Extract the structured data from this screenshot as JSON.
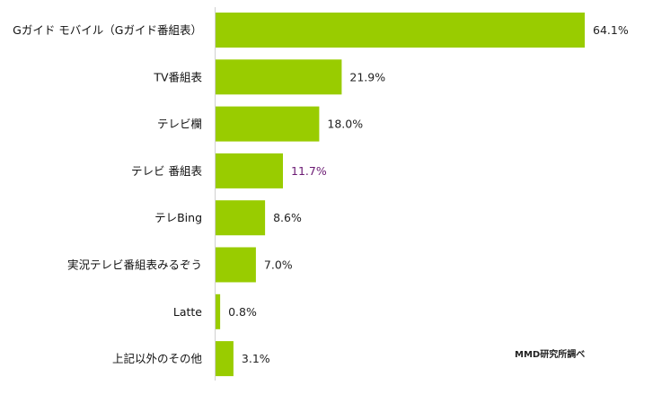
{
  "chart_data": {
    "type": "bar",
    "orientation": "horizontal",
    "categories": [
      "Gガイド モバイル（Gガイド番組表）",
      "TV番組表",
      "テレビ欄",
      "テレビ 番組表",
      "テレBing",
      "実況テレビ番組表みるぞう",
      "Latte",
      "上記以外のその他"
    ],
    "values": [
      64.1,
      21.9,
      18.0,
      11.7,
      8.6,
      7.0,
      0.8,
      3.1
    ],
    "value_labels": [
      "64.1%",
      "21.9%",
      "18.0%",
      "11.7%",
      "8.6%",
      "7.0%",
      "0.8%",
      "3.1%"
    ],
    "value_label_colors": [
      "#222222",
      "#222222",
      "#222222",
      "#6b1a73",
      "#222222",
      "#222222",
      "#222222",
      "#222222"
    ],
    "xlim": [
      0,
      64.1
    ],
    "grid": false,
    "bar_color": "#99cc00"
  },
  "source_note": "MMD研究所調べ"
}
